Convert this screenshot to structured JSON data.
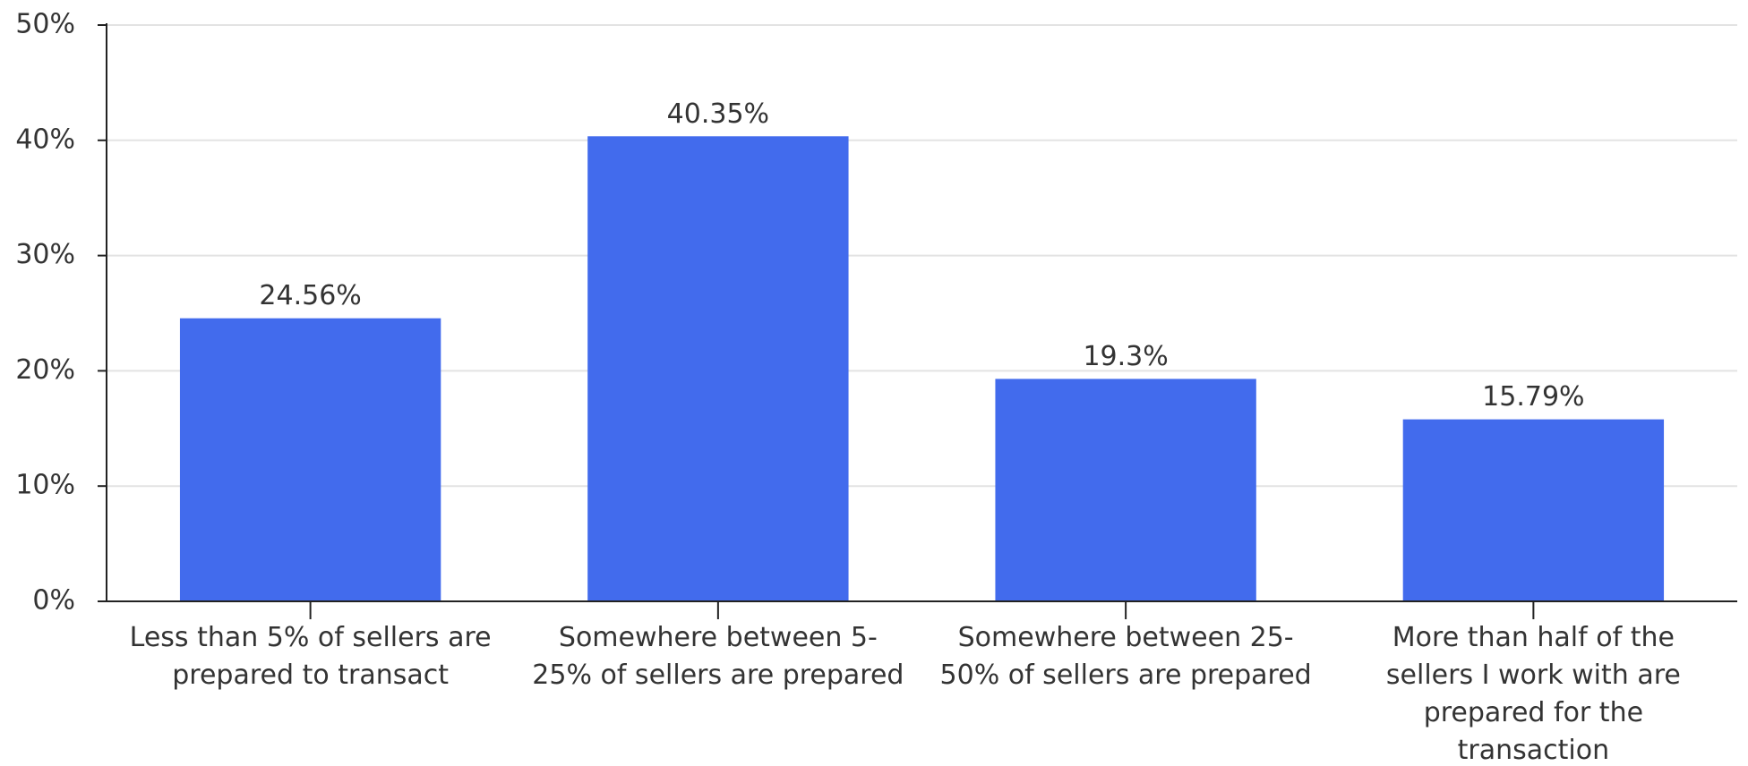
{
  "chart_data": {
    "type": "bar",
    "categories": [
      "Less than 5% of sellers are prepared to transact",
      "Somewhere between 5-25% of sellers are prepared",
      "Somewhere between 25-50% of sellers are prepared",
      "More than half of the sellers I work with are prepared for the transaction"
    ],
    "values": [
      24.56,
      40.35,
      19.3,
      15.79
    ],
    "value_labels": [
      "24.56%",
      "40.35%",
      "19.3%",
      "15.79%"
    ],
    "color": "#426bed",
    "ylim": [
      0,
      50
    ],
    "yticks": [
      {
        "value": 0,
        "label": "0%"
      },
      {
        "value": 10,
        "label": "10%"
      },
      {
        "value": 20,
        "label": "20%"
      },
      {
        "value": 30,
        "label": "30%"
      },
      {
        "value": 40,
        "label": "40%"
      },
      {
        "value": 50,
        "label": "50%"
      }
    ],
    "grid": true
  }
}
